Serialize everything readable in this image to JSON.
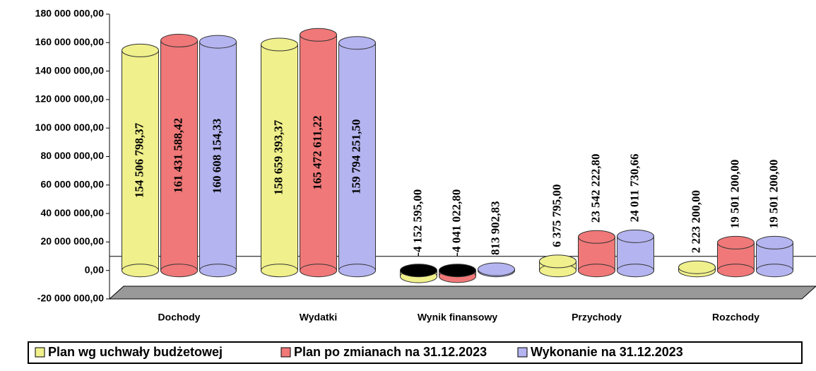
{
  "chart_data": {
    "type": "bar",
    "categories": [
      "Dochody",
      "Wydatki",
      "Wynik finansowy",
      "Przychody",
      "Rozchody"
    ],
    "series": [
      {
        "name": "Plan wg uchwały budżetowej",
        "color": "#f0f08c",
        "values": [
          154506798.37,
          158659393.37,
          -4152595.0,
          6375795.0,
          2223200.0
        ],
        "value_labels": [
          "154 506 798,37",
          "158 659 393,37",
          "-4 152 595,00",
          "6 375 795,00",
          "2 223 200,00"
        ]
      },
      {
        "name": "Plan po zmianach na 31.12.2023",
        "color": "#f07878",
        "values": [
          161431588.42,
          165472611.22,
          -4041022.8,
          23542222.8,
          19501200.0
        ],
        "value_labels": [
          "161 431 588,42",
          "165 472 611,22",
          "-4 041 022,80",
          "23 542 222,80",
          "19 501 200,00"
        ]
      },
      {
        "name": "Wykonanie na 31.12.2023",
        "color": "#b4b4f0",
        "values": [
          160608154.33,
          159794251.5,
          813902.83,
          24011730.66,
          19501200.0
        ],
        "value_labels": [
          "160 608 154,33",
          "159 794 251,50",
          "813 902,83",
          "24 011 730,66",
          "19 501 200,00"
        ]
      }
    ],
    "ylim": [
      -20000000,
      180000000
    ],
    "yticks": [
      {
        "value": -20000000,
        "label": "-20 000 000,00"
      },
      {
        "value": 0,
        "label": "0,00"
      },
      {
        "value": 20000000,
        "label": "20 000 000,00"
      },
      {
        "value": 40000000,
        "label": "40 000 000,00"
      },
      {
        "value": 60000000,
        "label": "60 000 000,00"
      },
      {
        "value": 80000000,
        "label": "80 000 000,00"
      },
      {
        "value": 100000000,
        "label": "100 000 000,00"
      },
      {
        "value": 120000000,
        "label": "120 000 000,00"
      },
      {
        "value": 140000000,
        "label": "140 000 000,00"
      },
      {
        "value": 160000000,
        "label": "160 000 000,00"
      },
      {
        "value": 180000000,
        "label": "180 000 000,00"
      }
    ],
    "legend": "bottom"
  }
}
